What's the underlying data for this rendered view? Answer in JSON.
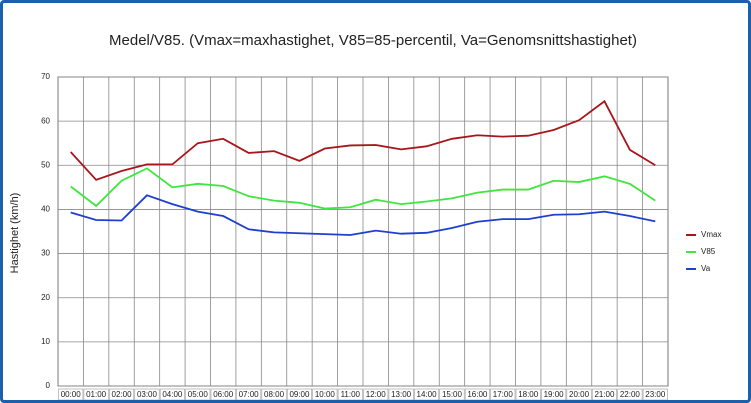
{
  "chart_data": {
    "type": "line",
    "title": "Medel/V85. (Vmax=maxhastighet, V85=85-percentil, Va=Genomsnittshastighet)",
    "y_label": "Hastighet (km/h)",
    "categories": [
      "00:00",
      "01:00",
      "02:00",
      "03:00",
      "04:00",
      "05:00",
      "06:00",
      "07:00",
      "08:00",
      "09:00",
      "10:00",
      "11:00",
      "12:00",
      "13:00",
      "14:00",
      "15:00",
      "16:00",
      "17:00",
      "18:00",
      "19:00",
      "20:00",
      "21:00",
      "22:00",
      "23:00"
    ],
    "series": [
      {
        "name": "Vmax",
        "color": "#a8161b",
        "values": [
          53,
          46.7,
          48.7,
          50.2,
          50.2,
          55,
          56,
          52.8,
          53.2,
          51,
          53.8,
          54.5,
          54.6,
          53.6,
          54.3,
          56,
          56.8,
          56.5,
          56.7,
          58,
          60.2,
          64.5,
          53.5,
          50
        ]
      },
      {
        "name": "V85",
        "color": "#3ee63e",
        "values": [
          45.2,
          40.8,
          46.5,
          49.3,
          45,
          45.8,
          45.3,
          43,
          42,
          41.5,
          40.2,
          40.5,
          42.2,
          41.2,
          41.8,
          42.5,
          43.8,
          44.5,
          44.5,
          46.5,
          46.2,
          47.5,
          45.8,
          42
        ]
      },
      {
        "name": "Va",
        "color": "#1f3fcf",
        "values": [
          39.3,
          37.6,
          37.5,
          43.2,
          41.2,
          39.5,
          38.5,
          35.5,
          34.8,
          34.6,
          34.4,
          34.2,
          35.2,
          34.5,
          34.7,
          35.8,
          37.2,
          37.8,
          37.8,
          38.8,
          38.9,
          39.5,
          38.5,
          37.3
        ]
      }
    ],
    "ylim": [
      0,
      70
    ],
    "yticks": [
      0,
      10,
      20,
      30,
      40,
      50,
      60,
      70
    ],
    "grid": true,
    "legend": "right"
  }
}
